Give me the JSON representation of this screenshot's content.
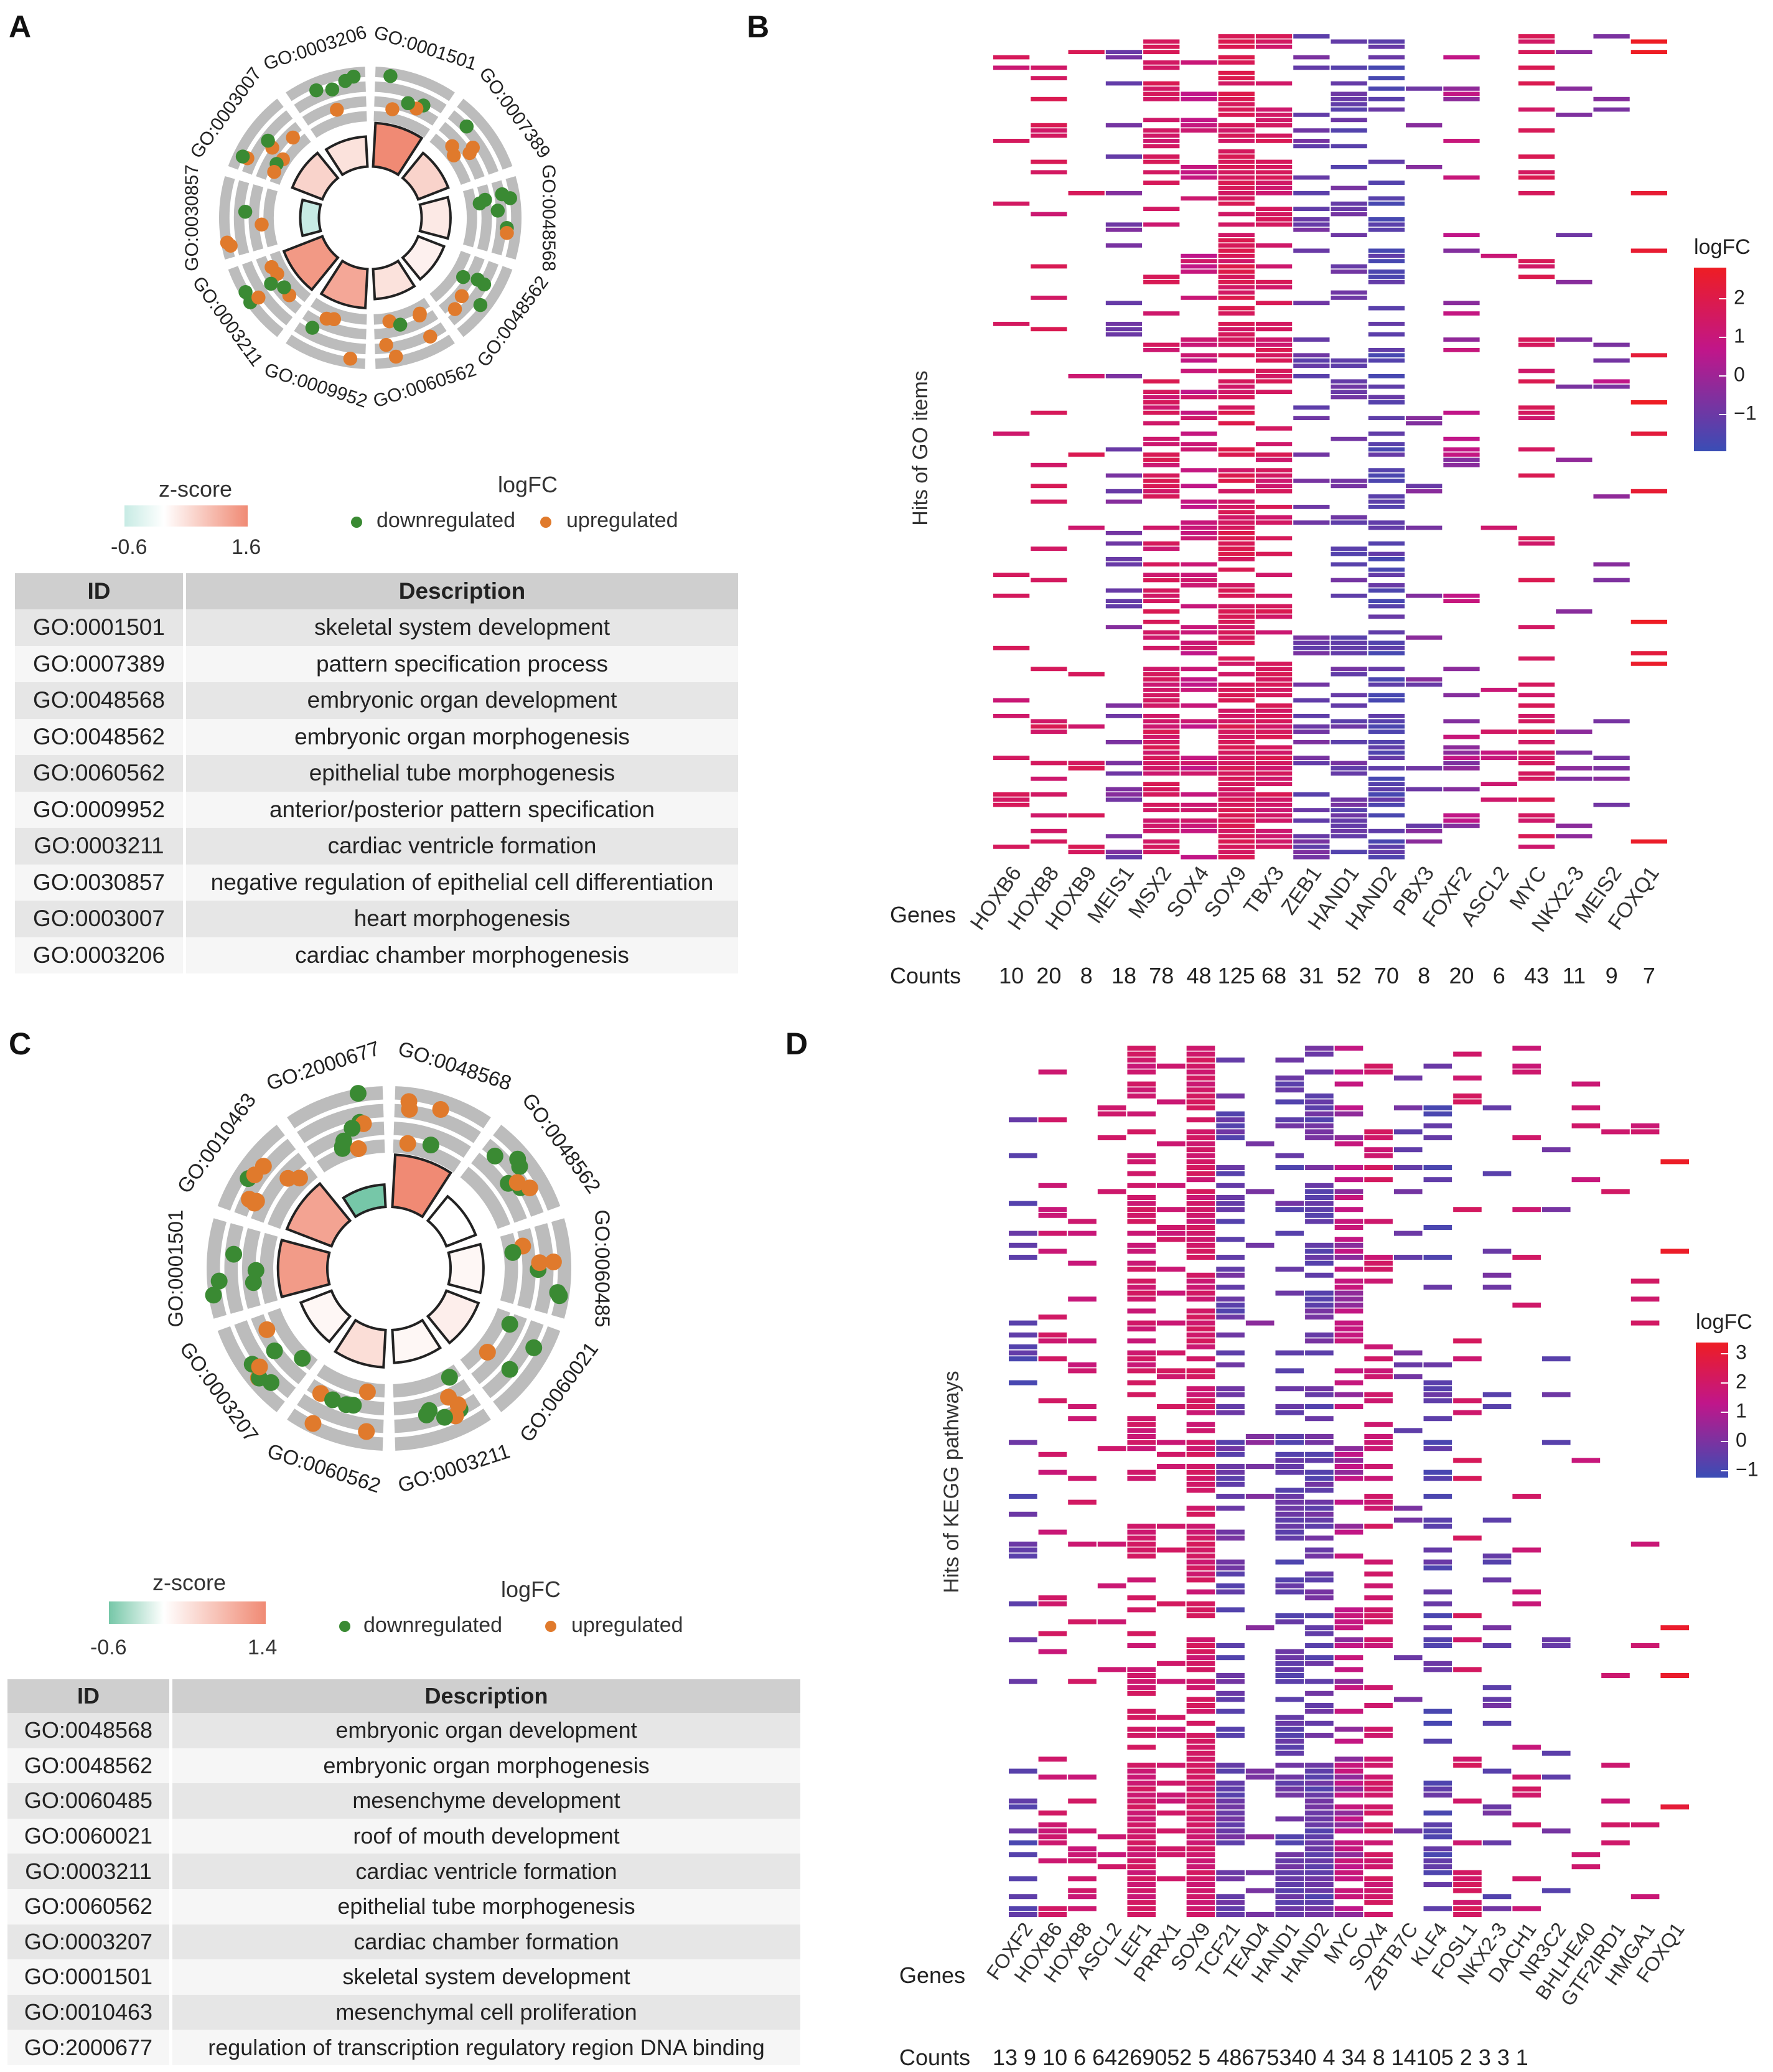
{
  "colors": {
    "up": "#e07a2c",
    "down": "#3a8a33",
    "zpos": "#f08a74",
    "zneg_a": "#c7ebe4",
    "zneg_c": "#76c7a8",
    "heat_low": "#3a4db5",
    "heat_mid": "#c0168a",
    "heat_high": "#ee1d24",
    "ring_gray": "#bcbcbc"
  },
  "panels": {
    "A": {
      "letter": "A",
      "legend": {
        "zscore_title": "z-score",
        "zmin": "-0.6",
        "zmax": "1.6",
        "logfc_title": "logFC",
        "down_label": "downregulated",
        "up_label": "upregulated"
      },
      "table": {
        "header_id": "ID",
        "header_desc": "Description",
        "rows": [
          {
            "id": "GO:0001501",
            "desc": "skeletal system development"
          },
          {
            "id": "GO:0007389",
            "desc": "pattern specification process"
          },
          {
            "id": "GO:0048568",
            "desc": "embryonic organ development"
          },
          {
            "id": "GO:0048562",
            "desc": "embryonic organ morphogenesis"
          },
          {
            "id": "GO:0060562",
            "desc": "epithelial tube morphogenesis"
          },
          {
            "id": "GO:0009952",
            "desc": "anterior/posterior pattern specification"
          },
          {
            "id": "GO:0003211",
            "desc": "cardiac ventricle formation"
          },
          {
            "id": "GO:0030857",
            "desc": "negative regulation of epithelial cell differentiation"
          },
          {
            "id": "GO:0003007",
            "desc": "heart morphogenesis"
          },
          {
            "id": "GO:0003206",
            "desc": "cardiac chamber morphogenesis"
          }
        ]
      }
    },
    "B": {
      "letter": "B",
      "ylabel": "Hits of GO items",
      "genes_label": "Genes",
      "counts_label": "Counts",
      "legend_title": "logFC",
      "legend_ticks": [
        "2",
        "1",
        "0",
        "−1"
      ]
    },
    "C": {
      "letter": "C",
      "legend": {
        "zscore_title": "z-score",
        "zmin": "-0.6",
        "zmax": "1.4",
        "logfc_title": "logFC",
        "down_label": "downregulated",
        "up_label": "upregulated"
      },
      "table": {
        "header_id": "ID",
        "header_desc": "Description",
        "rows": [
          {
            "id": "GO:0048568",
            "desc": "embryonic organ development"
          },
          {
            "id": "GO:0048562",
            "desc": "embryonic organ morphogenesis"
          },
          {
            "id": "GO:0060485",
            "desc": "mesenchyme development"
          },
          {
            "id": "GO:0060021",
            "desc": "roof of mouth development"
          },
          {
            "id": "GO:0003211",
            "desc": "cardiac ventricle formation"
          },
          {
            "id": "GO:0060562",
            "desc": "epithelial tube morphogenesis"
          },
          {
            "id": "GO:0003207",
            "desc": "cardiac chamber formation"
          },
          {
            "id": "GO:0001501",
            "desc": "skeletal system development"
          },
          {
            "id": "GO:0010463",
            "desc": "mesenchymal cell proliferation"
          },
          {
            "id": "GO:2000677",
            "desc": "regulation of transcription regulatory region DNA binding"
          }
        ]
      }
    },
    "D": {
      "letter": "D",
      "ylabel": "Hits of KEGG pathways",
      "genes_label": "Genes",
      "counts_label": "Counts",
      "legend_title": "logFC",
      "legend_ticks": [
        "3",
        "2",
        "1",
        "0",
        "−1"
      ]
    }
  },
  "chart_data": [
    {
      "type": "circos",
      "panel": "A",
      "terms": [
        "GO:0001501",
        "GO:0007389",
        "GO:0048568",
        "GO:0048562",
        "GO:0060562",
        "GO:0009952",
        "GO:0003211",
        "GO:0030857",
        "GO:0003007",
        "GO:0003206"
      ],
      "zscore": [
        1.6,
        0.6,
        0.3,
        0.2,
        0.4,
        1.2,
        1.4,
        -0.6,
        0.6,
        0.4
      ],
      "zrange": [
        -0.6,
        1.6
      ]
    },
    {
      "type": "heatmap",
      "panel": "B",
      "ylabel": "Hits of GO items",
      "genes": [
        "HOXB6",
        "HOXB8",
        "HOXB9",
        "MEIS1",
        "MSX2",
        "SOX4",
        "SOX9",
        "TBX3",
        "ZEB1",
        "HAND1",
        "HAND2",
        "PBX3",
        "FOXF2",
        "ASCL2",
        "MYC",
        "NKX2-3",
        "MEIS2",
        "FOXQ1"
      ],
      "counts": [
        "10",
        "20",
        "8",
        "18",
        "78",
        "48",
        "125",
        "68",
        "31",
        "52",
        "70",
        "8",
        "20",
        "6",
        "43",
        "11",
        "9",
        "7"
      ],
      "color_range": [
        -1.5,
        2.5
      ]
    },
    {
      "type": "circos",
      "panel": "C",
      "terms": [
        "GO:0048568",
        "GO:0048562",
        "GO:0060485",
        "GO:0060021",
        "GO:0003211",
        "GO:0060562",
        "GO:0003207",
        "GO:0001501",
        "GO:0010463",
        "GO:2000677"
      ],
      "zscore": [
        1.4,
        0.0,
        0.1,
        0.2,
        0.1,
        0.4,
        0.1,
        1.2,
        1.1,
        -0.6
      ],
      "zrange": [
        -0.6,
        1.4
      ]
    },
    {
      "type": "heatmap",
      "panel": "D",
      "ylabel": "Hits of KEGG pathways",
      "genes": [
        "FOXF2",
        "HOXB6",
        "HOXB8",
        "ASCL2",
        "LEF1",
        "PRRX1",
        "SOX9",
        "TCF21",
        "TEAD4",
        "HAND1",
        "HAND2",
        "MYC",
        "SOX4",
        "ZBTB7C",
        "KLF4",
        "FOSL1",
        "NKX2-3",
        "DACH1",
        "NR3C2",
        "BHLHE40",
        "GTF2IRD1",
        "HMGA1",
        "FOXQ1"
      ],
      "counts": [
        "13",
        "9",
        "10",
        "6",
        "64",
        "26",
        "90",
        "52",
        "5",
        "48",
        "67",
        "53",
        "40",
        "4",
        "34",
        "8",
        "14",
        "10",
        "5",
        "2",
        "3",
        "3",
        "1"
      ],
      "counts_text": "13 9 10 6 64269052 5 48675340 4 34 8 14105 2 3 3 1",
      "color_range": [
        -1.5,
        3.3
      ]
    }
  ]
}
